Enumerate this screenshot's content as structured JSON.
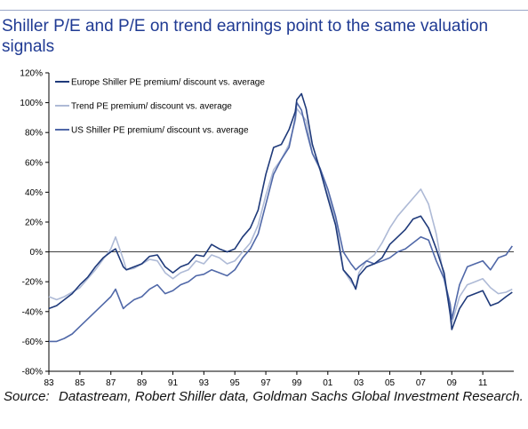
{
  "title": "Shiller P/E and P/E on trend earnings point to the same valuation signals",
  "source_label": "Source:",
  "source_text": "Datastream, Robert Shiller data, Goldman Sachs Global Investment Research.",
  "chart_data": {
    "type": "line",
    "title": "Shiller P/E and P/E on trend earnings point to the same valuation signals",
    "xlabel": "",
    "ylabel": "",
    "xlim": [
      1983,
      2013
    ],
    "ylim": [
      -80,
      120
    ],
    "yticks": [
      -80,
      -60,
      -40,
      -20,
      0,
      20,
      40,
      60,
      80,
      100,
      120
    ],
    "ytick_labels": [
      "-80%",
      "-60%",
      "-40%",
      "-20%",
      "0%",
      "20%",
      "40%",
      "60%",
      "80%",
      "100%",
      "120%"
    ],
    "xticks": [
      1983,
      1985,
      1987,
      1989,
      1991,
      1993,
      1995,
      1997,
      1999,
      2001,
      2003,
      2005,
      2007,
      2009,
      2011
    ],
    "xtick_labels": [
      "83",
      "85",
      "87",
      "89",
      "91",
      "93",
      "95",
      "97",
      "99",
      "01",
      "03",
      "05",
      "07",
      "09",
      "11"
    ],
    "grid": false,
    "legend_position": "top-left",
    "series": [
      {
        "name": "Europe Shiller PE premium/ discount vs. average",
        "color": "#1f3a7a",
        "x": [
          1983.0,
          1983.5,
          1984.0,
          1984.5,
          1985.0,
          1985.5,
          1986.0,
          1986.5,
          1987.0,
          1987.3,
          1987.8,
          1988.0,
          1988.5,
          1989.0,
          1989.5,
          1990.0,
          1990.5,
          1991.0,
          1991.5,
          1992.0,
          1992.5,
          1993.0,
          1993.5,
          1994.0,
          1994.5,
          1995.0,
          1995.5,
          1996.0,
          1996.5,
          1997.0,
          1997.5,
          1998.0,
          1998.5,
          1998.9,
          1999.0,
          1999.3,
          1999.6,
          2000.0,
          2000.5,
          2001.0,
          2001.5,
          2002.0,
          2002.5,
          2002.8,
          2003.0,
          2003.5,
          2004.0,
          2004.5,
          2005.0,
          2005.5,
          2006.0,
          2006.5,
          2007.0,
          2007.5,
          2008.0,
          2008.5,
          2008.9,
          2009.0,
          2009.5,
          2010.0,
          2010.5,
          2011.0,
          2011.5,
          2012.0,
          2012.5,
          2012.9
        ],
        "values": [
          -38,
          -36,
          -32,
          -28,
          -22,
          -17,
          -10,
          -4,
          0,
          2,
          -10,
          -12,
          -10,
          -8,
          -3,
          -2,
          -10,
          -14,
          -10,
          -8,
          -2,
          -3,
          5,
          2,
          0,
          2,
          10,
          16,
          28,
          52,
          70,
          72,
          82,
          94,
          102,
          106,
          96,
          72,
          55,
          36,
          18,
          -12,
          -18,
          -25,
          -16,
          -10,
          -8,
          -4,
          5,
          10,
          15,
          22,
          24,
          16,
          2,
          -14,
          -42,
          -52,
          -38,
          -30,
          -28,
          -26,
          -36,
          -34,
          -30,
          -27
        ]
      },
      {
        "name": "Trend PE premium/ discount vs. average",
        "color": "#aebad6",
        "x": [
          1983.0,
          1983.5,
          1984.0,
          1984.5,
          1985.0,
          1985.5,
          1986.0,
          1986.5,
          1987.0,
          1987.3,
          1987.8,
          1988.0,
          1988.5,
          1989.0,
          1989.5,
          1990.0,
          1990.5,
          1991.0,
          1991.5,
          1992.0,
          1992.5,
          1993.0,
          1993.5,
          1994.0,
          1994.5,
          1995.0,
          1995.5,
          1996.0,
          1996.5,
          1997.0,
          1997.5,
          1998.0,
          1998.5,
          1998.9,
          1999.0,
          1999.3,
          1999.6,
          2000.0,
          2000.5,
          2001.0,
          2001.5,
          2002.0,
          2002.5,
          2002.8,
          2003.0,
          2003.5,
          2004.0,
          2004.5,
          2005.0,
          2005.5,
          2006.0,
          2006.5,
          2007.0,
          2007.5,
          2008.0,
          2008.5,
          2008.9,
          2009.0,
          2009.5,
          2010.0,
          2010.5,
          2011.0,
          2011.5,
          2012.0,
          2012.5,
          2012.9
        ],
        "values": [
          -30,
          -32,
          -30,
          -27,
          -24,
          -18,
          -12,
          -5,
          2,
          10,
          -5,
          -12,
          -11,
          -8,
          -5,
          -6,
          -14,
          -18,
          -14,
          -12,
          -6,
          -8,
          -2,
          -4,
          -8,
          -6,
          0,
          6,
          18,
          38,
          55,
          62,
          72,
          88,
          96,
          92,
          88,
          66,
          55,
          38,
          22,
          -12,
          -20,
          -24,
          -14,
          -6,
          -2,
          6,
          16,
          24,
          30,
          36,
          42,
          32,
          12,
          -18,
          -40,
          -48,
          -30,
          -22,
          -20,
          -18,
          -24,
          -28,
          -27,
          -25
        ]
      },
      {
        "name": "US Shiller PE premium/ discount vs. average",
        "color": "#5068a8",
        "x": [
          1983.0,
          1983.5,
          1984.0,
          1984.5,
          1985.0,
          1985.5,
          1986.0,
          1986.5,
          1987.0,
          1987.3,
          1987.8,
          1988.0,
          1988.5,
          1989.0,
          1989.5,
          1990.0,
          1990.5,
          1991.0,
          1991.5,
          1992.0,
          1992.5,
          1993.0,
          1993.5,
          1994.0,
          1994.5,
          1995.0,
          1995.5,
          1996.0,
          1996.5,
          1997.0,
          1997.5,
          1998.0,
          1998.5,
          1998.9,
          1999.0,
          1999.3,
          1999.6,
          2000.0,
          2000.5,
          2001.0,
          2001.5,
          2002.0,
          2002.5,
          2002.8,
          2003.0,
          2003.5,
          2004.0,
          2004.5,
          2005.0,
          2005.5,
          2006.0,
          2006.5,
          2007.0,
          2007.5,
          2008.0,
          2008.5,
          2008.9,
          2009.0,
          2009.5,
          2010.0,
          2010.5,
          2011.0,
          2011.5,
          2012.0,
          2012.5,
          2012.9
        ],
        "values": [
          -60,
          -60,
          -58,
          -55,
          -50,
          -45,
          -40,
          -35,
          -30,
          -25,
          -38,
          -36,
          -32,
          -30,
          -25,
          -22,
          -28,
          -26,
          -22,
          -20,
          -16,
          -15,
          -12,
          -14,
          -16,
          -12,
          -4,
          2,
          12,
          32,
          52,
          62,
          70,
          90,
          100,
          95,
          82,
          66,
          56,
          42,
          24,
          0,
          -8,
          -12,
          -10,
          -6,
          -8,
          -6,
          -4,
          0,
          2,
          6,
          10,
          8,
          -6,
          -18,
          -35,
          -45,
          -22,
          -10,
          -8,
          -6,
          -12,
          -4,
          -2,
          4
        ]
      }
    ]
  }
}
